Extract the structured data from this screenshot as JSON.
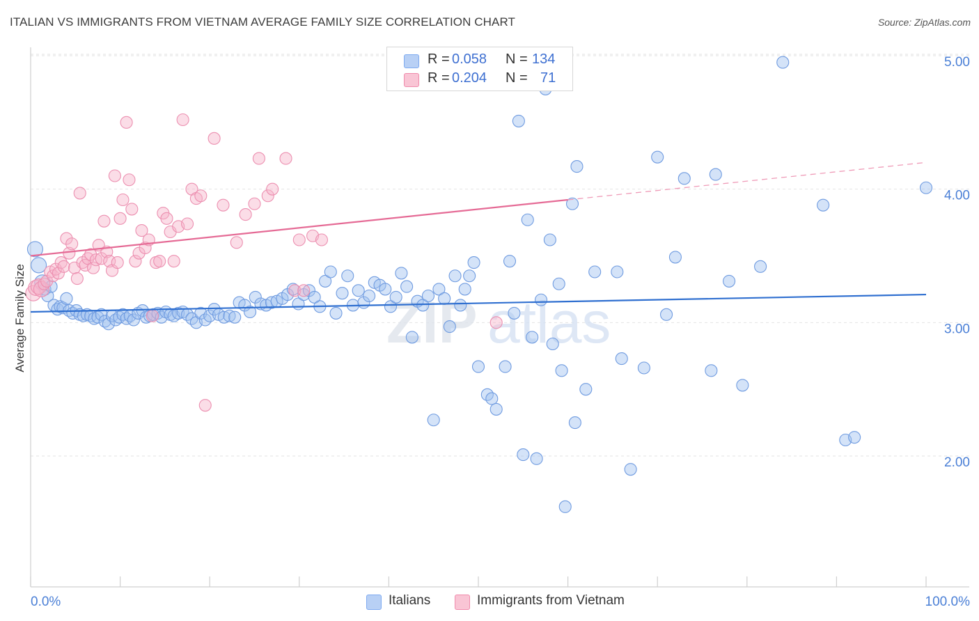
{
  "header": {
    "title": "ITALIAN VS IMMIGRANTS FROM VIETNAM AVERAGE FAMILY SIZE CORRELATION CHART",
    "source": "Source: ZipAtlas.com"
  },
  "legend": {
    "r_label": "R =",
    "n_label": "N =",
    "series": [
      {
        "name": "Italians",
        "r": "0.058",
        "n": "134",
        "color": "#7eaaf0",
        "fill": "#b8d0f5"
      },
      {
        "name": "Immigrants from Vietnam",
        "r": "0.204",
        "n": "71",
        "color": "#f08aab",
        "fill": "#f9c5d5"
      }
    ]
  },
  "watermark": {
    "part1": "ZIP",
    "part2": "atlas"
  },
  "chart_data": {
    "type": "scatter",
    "title": "ITALIAN VS IMMIGRANTS FROM VIETNAM AVERAGE FAMILY SIZE CORRELATION CHART",
    "xlabel": "",
    "ylabel": "Average Family Size",
    "x_tick_labels": [
      "0.0%",
      "100.0%"
    ],
    "y_tick_labels": [
      "2.00",
      "3.00",
      "4.00",
      "5.00"
    ],
    "xlim": [
      0,
      100
    ],
    "ylim": [
      1.1,
      5.15
    ],
    "grid": true,
    "legend_position": "top-center",
    "series": [
      {
        "name": "Italians",
        "color": "#4a7fd6",
        "trend": {
          "x": [
            0,
            100
          ],
          "y": [
            3.08,
            3.21
          ]
        },
        "points": [
          [
            0.5,
            3.55
          ],
          [
            0.9,
            3.43
          ],
          [
            1.3,
            3.3
          ],
          [
            1.6,
            3.25
          ],
          [
            1.9,
            3.2
          ],
          [
            2.3,
            3.27
          ],
          [
            2.6,
            3.13
          ],
          [
            3.0,
            3.1
          ],
          [
            3.3,
            3.12
          ],
          [
            3.6,
            3.11
          ],
          [
            4.0,
            3.18
          ],
          [
            4.3,
            3.09
          ],
          [
            4.7,
            3.07
          ],
          [
            5.1,
            3.09
          ],
          [
            5.5,
            3.06
          ],
          [
            5.9,
            3.05
          ],
          [
            6.3,
            3.06
          ],
          [
            6.7,
            3.05
          ],
          [
            7.1,
            3.03
          ],
          [
            7.5,
            3.04
          ],
          [
            7.9,
            3.06
          ],
          [
            8.3,
            3.01
          ],
          [
            8.7,
            2.99
          ],
          [
            9.1,
            3.05
          ],
          [
            9.5,
            3.02
          ],
          [
            9.9,
            3.04
          ],
          [
            10.3,
            3.06
          ],
          [
            10.7,
            3.03
          ],
          [
            11.1,
            3.05
          ],
          [
            11.5,
            3.02
          ],
          [
            12.0,
            3.07
          ],
          [
            12.5,
            3.09
          ],
          [
            12.9,
            3.04
          ],
          [
            13.3,
            3.05
          ],
          [
            13.7,
            3.06
          ],
          [
            14.2,
            3.07
          ],
          [
            14.6,
            3.04
          ],
          [
            15.1,
            3.08
          ],
          [
            15.6,
            3.06
          ],
          [
            16.0,
            3.05
          ],
          [
            16.5,
            3.07
          ],
          [
            17.0,
            3.08
          ],
          [
            17.5,
            3.06
          ],
          [
            18.0,
            3.03
          ],
          [
            18.5,
            3.0
          ],
          [
            19.0,
            3.07
          ],
          [
            19.5,
            3.02
          ],
          [
            20.0,
            3.05
          ],
          [
            20.5,
            3.1
          ],
          [
            21.0,
            3.06
          ],
          [
            21.6,
            3.04
          ],
          [
            22.2,
            3.05
          ],
          [
            22.8,
            3.04
          ],
          [
            23.3,
            3.15
          ],
          [
            23.9,
            3.13
          ],
          [
            24.5,
            3.08
          ],
          [
            25.1,
            3.19
          ],
          [
            25.7,
            3.14
          ],
          [
            26.3,
            3.13
          ],
          [
            26.9,
            3.15
          ],
          [
            27.5,
            3.16
          ],
          [
            28.1,
            3.18
          ],
          [
            28.7,
            3.21
          ],
          [
            29.3,
            3.25
          ],
          [
            29.9,
            3.14
          ],
          [
            30.5,
            3.21
          ],
          [
            31.1,
            3.24
          ],
          [
            31.7,
            3.19
          ],
          [
            32.3,
            3.12
          ],
          [
            32.9,
            3.31
          ],
          [
            33.5,
            3.38
          ],
          [
            34.1,
            3.07
          ],
          [
            34.8,
            3.22
          ],
          [
            35.4,
            3.35
          ],
          [
            36.0,
            3.13
          ],
          [
            36.6,
            3.24
          ],
          [
            37.2,
            3.15
          ],
          [
            37.8,
            3.2
          ],
          [
            38.4,
            3.3
          ],
          [
            39.0,
            3.28
          ],
          [
            39.6,
            3.25
          ],
          [
            40.2,
            3.12
          ],
          [
            40.8,
            3.19
          ],
          [
            41.4,
            3.37
          ],
          [
            42.0,
            3.27
          ],
          [
            42.6,
            2.89
          ],
          [
            43.2,
            3.16
          ],
          [
            43.8,
            3.13
          ],
          [
            44.4,
            3.2
          ],
          [
            45.0,
            2.27
          ],
          [
            45.6,
            3.25
          ],
          [
            46.2,
            3.18
          ],
          [
            46.8,
            2.97
          ],
          [
            47.4,
            3.35
          ],
          [
            48.0,
            3.13
          ],
          [
            48.5,
            3.25
          ],
          [
            49.0,
            3.35
          ],
          [
            49.5,
            3.45
          ],
          [
            50.0,
            2.67
          ],
          [
            51.0,
            2.46
          ],
          [
            51.5,
            2.43
          ],
          [
            52.0,
            2.35
          ],
          [
            53.0,
            2.67
          ],
          [
            53.5,
            3.46
          ],
          [
            54.0,
            3.07
          ],
          [
            54.5,
            4.51
          ],
          [
            55.0,
            2.01
          ],
          [
            55.5,
            3.77
          ],
          [
            56.0,
            2.89
          ],
          [
            56.5,
            1.98
          ],
          [
            57.0,
            3.17
          ],
          [
            57.5,
            4.75
          ],
          [
            58.0,
            3.62
          ],
          [
            58.3,
            2.84
          ],
          [
            59.0,
            3.29
          ],
          [
            59.3,
            2.64
          ],
          [
            59.7,
            1.62
          ],
          [
            60.5,
            3.89
          ],
          [
            60.8,
            2.25
          ],
          [
            61.0,
            4.17
          ],
          [
            62.0,
            2.5
          ],
          [
            63.0,
            3.38
          ],
          [
            65.5,
            3.38
          ],
          [
            66.0,
            2.73
          ],
          [
            67.0,
            1.9
          ],
          [
            68.5,
            2.66
          ],
          [
            70.0,
            4.24
          ],
          [
            71.0,
            3.06
          ],
          [
            72.0,
            3.49
          ],
          [
            73.0,
            4.08
          ],
          [
            76.0,
            2.64
          ],
          [
            76.5,
            4.11
          ],
          [
            78.0,
            3.31
          ],
          [
            79.5,
            2.53
          ],
          [
            81.5,
            3.42
          ],
          [
            84.0,
            4.95
          ],
          [
            88.5,
            3.88
          ],
          [
            91.0,
            2.12
          ],
          [
            92.0,
            2.14
          ],
          [
            100.0,
            4.01
          ]
        ]
      },
      {
        "name": "Immigrants from Vietnam",
        "color": "#e8709a",
        "trend": {
          "x": [
            0,
            60
          ],
          "y": [
            3.5,
            3.92
          ]
        },
        "trend_extension": {
          "x": [
            60,
            100
          ],
          "y": [
            3.92,
            4.2
          ]
        },
        "points": [
          [
            0.3,
            3.22
          ],
          [
            0.6,
            3.26
          ],
          [
            0.9,
            3.27
          ],
          [
            1.2,
            3.25
          ],
          [
            1.5,
            3.29
          ],
          [
            1.8,
            3.31
          ],
          [
            2.2,
            3.38
          ],
          [
            2.5,
            3.35
          ],
          [
            2.8,
            3.4
          ],
          [
            3.1,
            3.37
          ],
          [
            3.4,
            3.45
          ],
          [
            3.7,
            3.42
          ],
          [
            4.0,
            3.63
          ],
          [
            4.3,
            3.52
          ],
          [
            4.6,
            3.59
          ],
          [
            4.9,
            3.41
          ],
          [
            5.2,
            3.33
          ],
          [
            5.5,
            3.97
          ],
          [
            5.8,
            3.45
          ],
          [
            6.1,
            3.43
          ],
          [
            6.4,
            3.48
          ],
          [
            6.7,
            3.51
          ],
          [
            7.0,
            3.41
          ],
          [
            7.3,
            3.47
          ],
          [
            7.6,
            3.58
          ],
          [
            7.9,
            3.48
          ],
          [
            8.2,
            3.76
          ],
          [
            8.5,
            3.53
          ],
          [
            8.8,
            3.46
          ],
          [
            9.1,
            3.39
          ],
          [
            9.4,
            4.1
          ],
          [
            9.7,
            3.45
          ],
          [
            10.0,
            3.78
          ],
          [
            10.3,
            3.92
          ],
          [
            10.7,
            4.5
          ],
          [
            11.0,
            4.07
          ],
          [
            11.3,
            3.85
          ],
          [
            11.7,
            3.46
          ],
          [
            12.1,
            3.52
          ],
          [
            12.4,
            3.69
          ],
          [
            12.8,
            3.56
          ],
          [
            13.2,
            3.62
          ],
          [
            13.6,
            3.05
          ],
          [
            14.0,
            3.45
          ],
          [
            14.4,
            3.46
          ],
          [
            14.8,
            3.82
          ],
          [
            15.2,
            3.78
          ],
          [
            15.6,
            3.68
          ],
          [
            16.0,
            3.46
          ],
          [
            16.5,
            3.72
          ],
          [
            17.0,
            4.52
          ],
          [
            17.5,
            3.74
          ],
          [
            18.0,
            4.0
          ],
          [
            18.5,
            3.93
          ],
          [
            19.0,
            3.95
          ],
          [
            19.5,
            2.38
          ],
          [
            20.5,
            4.38
          ],
          [
            21.5,
            3.88
          ],
          [
            23.0,
            3.6
          ],
          [
            24.0,
            3.81
          ],
          [
            25.0,
            3.89
          ],
          [
            25.5,
            4.23
          ],
          [
            26.5,
            3.95
          ],
          [
            27.0,
            4.0
          ],
          [
            28.5,
            4.23
          ],
          [
            29.5,
            3.24
          ],
          [
            30.0,
            3.62
          ],
          [
            30.5,
            3.24
          ],
          [
            31.5,
            3.65
          ],
          [
            32.5,
            3.62
          ],
          [
            52.0,
            3.0
          ]
        ]
      }
    ]
  }
}
